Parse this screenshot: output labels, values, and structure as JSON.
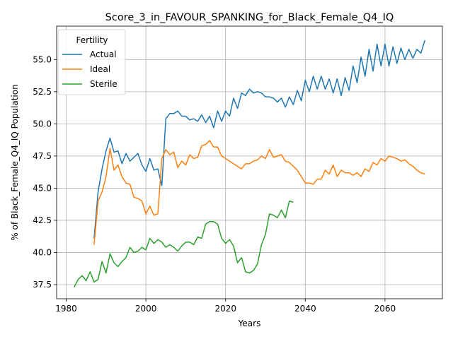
{
  "chart_data": {
    "type": "line",
    "title": "Score_3_in_FAVOUR_SPANKING_for_Black_Female_Q4_IQ",
    "xlabel": "Years",
    "ylabel": "% of Black_Female_Q4_IQ Population",
    "xlim": [
      1977.6,
      2074.4
    ],
    "ylim": [
      36.4,
      57.6
    ],
    "xticks": [
      1980,
      2000,
      2020,
      2040,
      2060
    ],
    "xtick_labels": [
      "1980",
      "2000",
      "2020",
      "2040",
      "2060"
    ],
    "yticks": [
      37.5,
      40.0,
      42.5,
      45.0,
      47.5,
      50.0,
      52.5,
      55.0
    ],
    "ytick_labels": [
      "37.5",
      "40.0",
      "42.5",
      "45.0",
      "47.5",
      "50.0",
      "52.5",
      "55.0"
    ],
    "grid": true,
    "legend": {
      "title": "Fertility",
      "placement": "top-left"
    },
    "series": [
      {
        "name": "Actual",
        "color": "#1f77b4",
        "x": [
          1987,
          1988,
          1989,
          1990,
          1991,
          1992,
          1993,
          1994,
          1995,
          1996,
          1997,
          1998,
          1999,
          2000,
          2001,
          2002,
          2003,
          2004,
          2005,
          2006,
          2007,
          2008,
          2009,
          2010,
          2011,
          2012,
          2013,
          2014,
          2015,
          2016,
          2017,
          2018,
          2019,
          2020,
          2021,
          2022,
          2023,
          2024,
          2025,
          2026,
          2027,
          2028,
          2029,
          2030,
          2031,
          2032,
          2033,
          2034,
          2035,
          2036,
          2037,
          2038,
          2039,
          2040,
          2041,
          2042,
          2043,
          2044,
          2045,
          2046,
          2047,
          2048,
          2049,
          2050,
          2051,
          2052,
          2053,
          2054,
          2055,
          2056,
          2057,
          2058,
          2059,
          2060,
          2061,
          2062,
          2063,
          2064,
          2065,
          2066,
          2067,
          2068,
          2069,
          2070
        ],
        "y": [
          41.1,
          44.7,
          46.5,
          47.9,
          48.9,
          47.8,
          47.9,
          46.9,
          47.7,
          47.1,
          47.4,
          47.7,
          46.8,
          46.3,
          47.3,
          46.4,
          46.5,
          45.2,
          50.4,
          50.8,
          50.8,
          51.0,
          50.6,
          50.6,
          50.3,
          50.4,
          50.2,
          50.7,
          50.1,
          50.6,
          49.7,
          51.0,
          50.2,
          51.0,
          50.6,
          52.0,
          51.2,
          52.4,
          52.2,
          52.7,
          52.4,
          52.5,
          52.4,
          52.1,
          52.1,
          52.0,
          51.7,
          52.0,
          51.3,
          52.1,
          51.5,
          52.6,
          51.8,
          53.4,
          52.5,
          53.7,
          52.7,
          53.7,
          52.7,
          53.5,
          52.4,
          53.5,
          52.2,
          53.6,
          52.6,
          54.5,
          53.2,
          55.2,
          53.7,
          55.8,
          54.1,
          56.2,
          54.5,
          56.2,
          54.5,
          56.0,
          54.7,
          55.9,
          55.0,
          55.8,
          55.1,
          55.8,
          55.5,
          56.5
        ]
      },
      {
        "name": "Ideal",
        "color": "#ff7f0e",
        "x": [
          1987,
          1988,
          1989,
          1990,
          1991,
          1992,
          1993,
          1994,
          1995,
          1996,
          1997,
          1998,
          1999,
          2000,
          2001,
          2002,
          2003,
          2004,
          2005,
          2006,
          2007,
          2008,
          2009,
          2010,
          2011,
          2012,
          2013,
          2014,
          2015,
          2016,
          2017,
          2018,
          2019,
          2020,
          2021,
          2022,
          2023,
          2024,
          2025,
          2026,
          2027,
          2028,
          2029,
          2030,
          2031,
          2032,
          2033,
          2034,
          2035,
          2036,
          2037,
          2038,
          2039,
          2040,
          2041,
          2042,
          2043,
          2044,
          2045,
          2046,
          2047,
          2048,
          2049,
          2050,
          2051,
          2052,
          2053,
          2054,
          2055,
          2056,
          2057,
          2058,
          2059,
          2060,
          2061,
          2062,
          2063,
          2064,
          2065,
          2066,
          2067,
          2068,
          2069,
          2070
        ],
        "y": [
          40.6,
          44.0,
          44.7,
          45.9,
          48.1,
          46.4,
          46.8,
          45.9,
          45.4,
          45.3,
          44.3,
          44.2,
          44.0,
          43.0,
          43.6,
          42.9,
          43.0,
          47.3,
          48.0,
          47.6,
          47.8,
          46.6,
          47.1,
          46.8,
          47.6,
          47.3,
          47.4,
          48.3,
          48.4,
          48.7,
          48.2,
          48.2,
          47.5,
          47.3,
          47.1,
          46.9,
          46.7,
          46.5,
          46.9,
          46.9,
          47.1,
          47.2,
          47.5,
          47.3,
          48.0,
          47.4,
          47.5,
          47.6,
          47.1,
          47.0,
          46.7,
          46.4,
          45.9,
          45.4,
          45.4,
          45.3,
          45.7,
          45.7,
          46.4,
          46.1,
          46.8,
          45.9,
          46.4,
          46.2,
          46.2,
          46.0,
          46.2,
          45.9,
          46.5,
          46.3,
          47.0,
          46.8,
          47.3,
          47.1,
          47.5,
          47.4,
          47.3,
          47.1,
          47.2,
          46.9,
          46.7,
          46.4,
          46.2,
          46.1
        ]
      },
      {
        "name": "Sterile",
        "color": "#2ca02c",
        "x": [
          1982,
          1983,
          1984,
          1985,
          1986,
          1987,
          1988,
          1989,
          1990,
          1991,
          1992,
          1993,
          1994,
          1995,
          1996,
          1997,
          1998,
          1999,
          2000,
          2001,
          2002,
          2003,
          2004,
          2005,
          2006,
          2007,
          2008,
          2009,
          2010,
          2011,
          2012,
          2013,
          2014,
          2015,
          2016,
          2017,
          2018,
          2019,
          2020,
          2021,
          2022,
          2023,
          2024,
          2025,
          2026,
          2027,
          2028,
          2029,
          2030,
          2031,
          2032,
          2033,
          2034,
          2035,
          2036,
          2037
        ],
        "y": [
          37.3,
          37.9,
          38.2,
          37.8,
          38.5,
          37.7,
          37.9,
          39.3,
          38.4,
          39.9,
          39.2,
          38.9,
          39.3,
          39.6,
          40.4,
          40.0,
          40.1,
          40.4,
          40.2,
          41.1,
          40.7,
          41.0,
          40.8,
          40.4,
          40.6,
          40.4,
          40.1,
          40.5,
          40.8,
          40.8,
          40.6,
          41.2,
          41.1,
          42.2,
          42.4,
          42.4,
          42.2,
          41.1,
          40.7,
          41.0,
          40.5,
          39.2,
          39.6,
          38.5,
          38.4,
          38.6,
          39.1,
          40.6,
          41.4,
          43.0,
          42.9,
          42.7,
          43.3,
          42.7,
          44.0,
          43.9
        ]
      }
    ]
  }
}
